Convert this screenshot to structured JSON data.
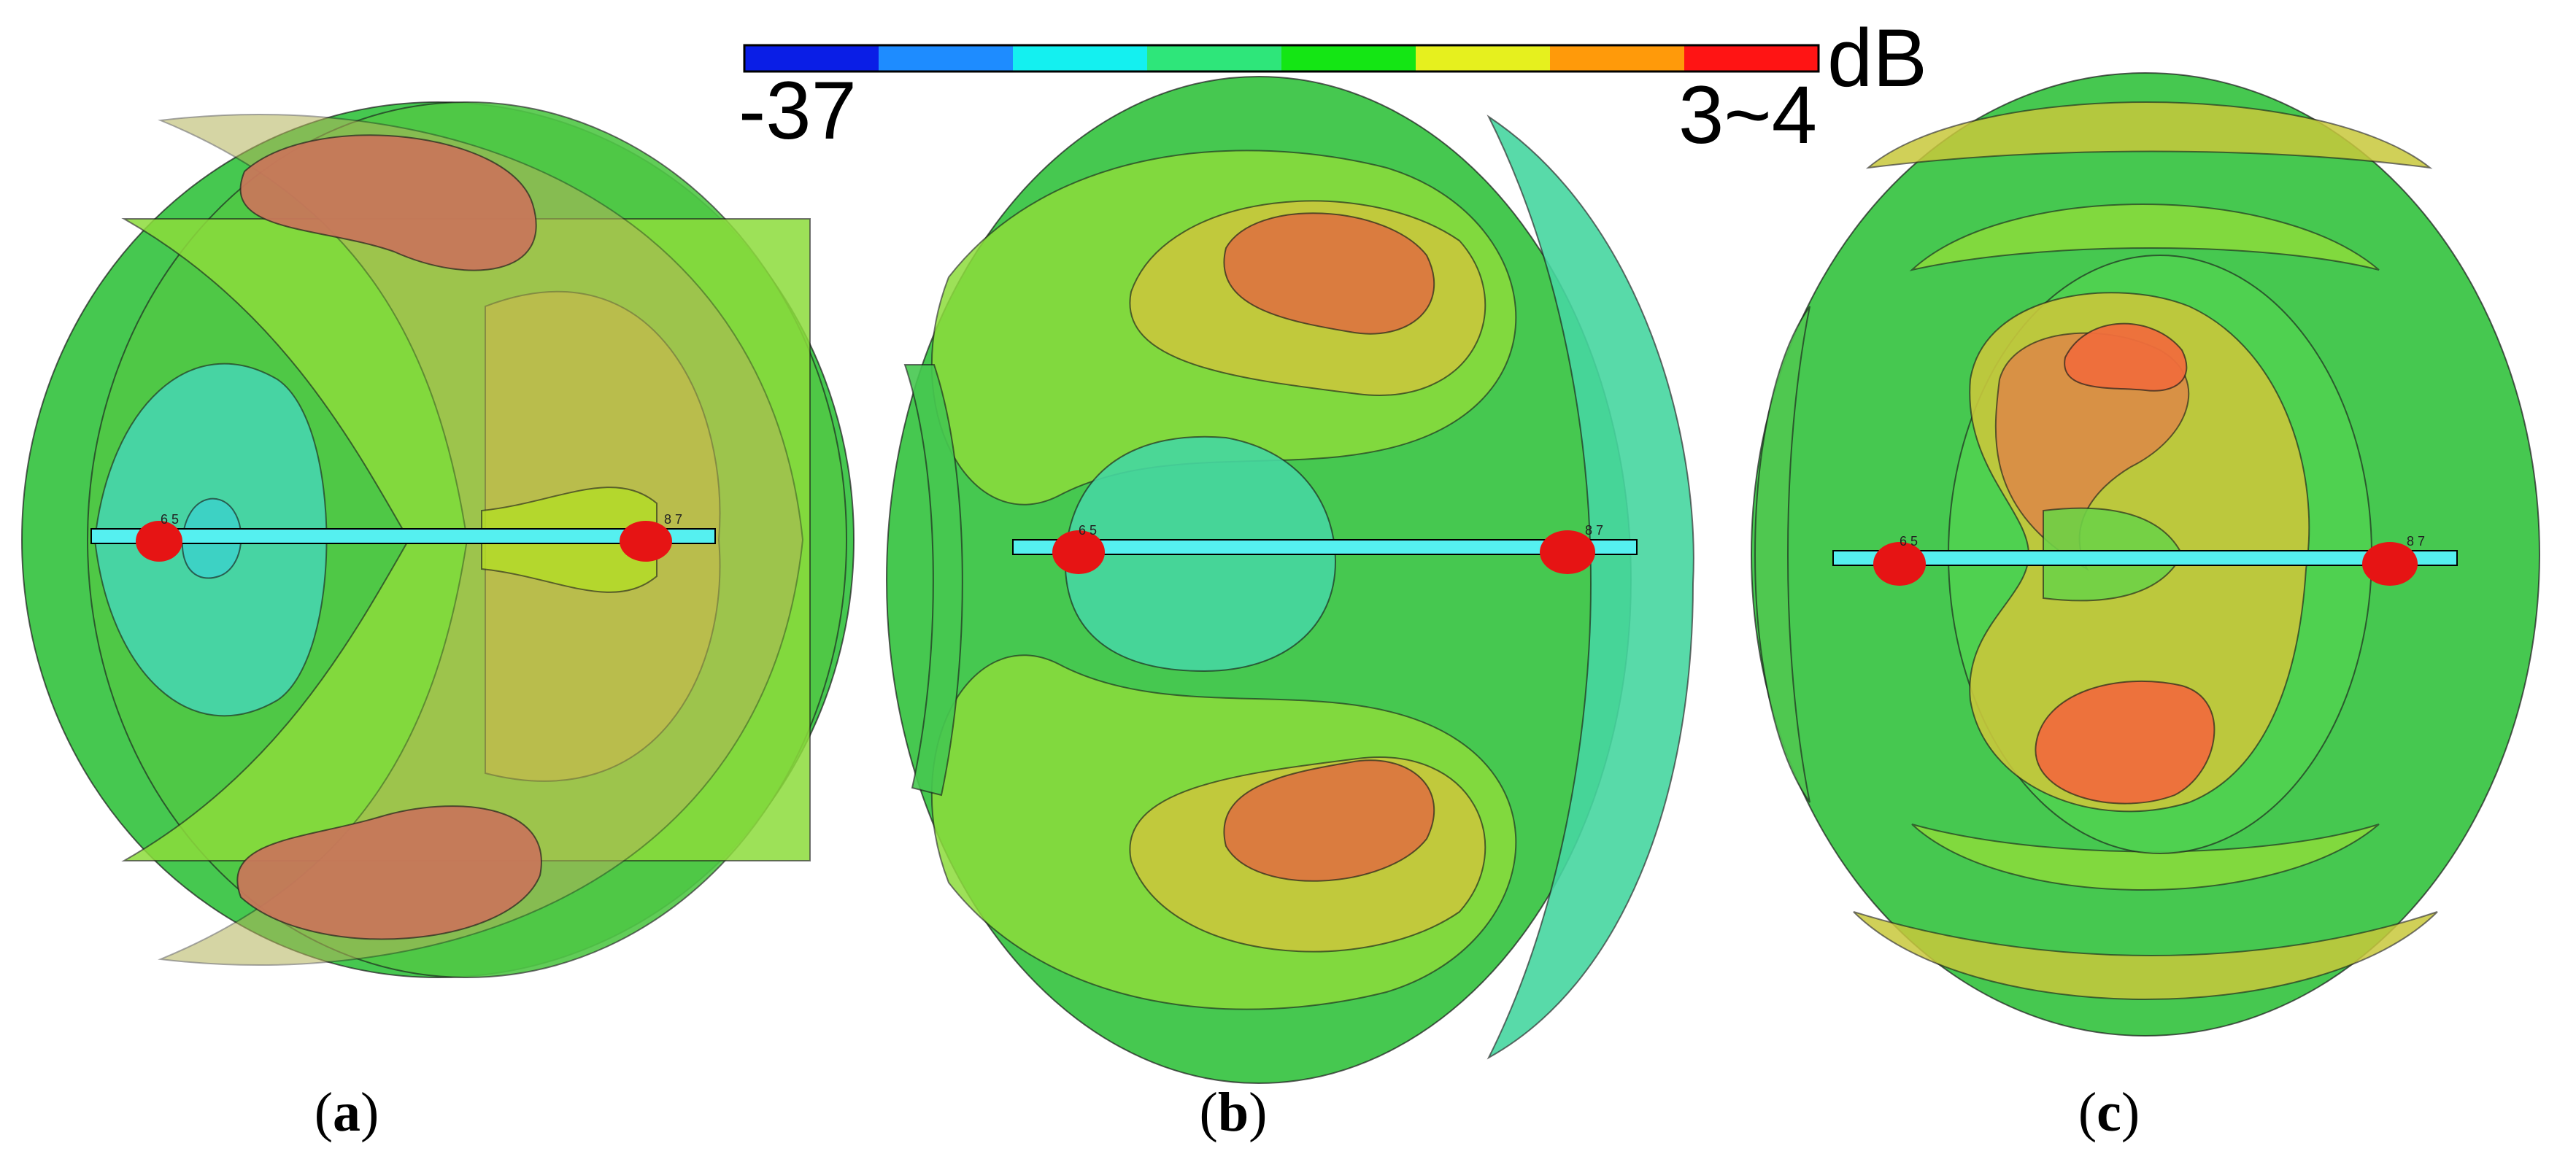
{
  "colorbar": {
    "min_label": "-37",
    "max_label": "3~4",
    "unit": "dB",
    "colors": [
      "#0a1ee6",
      "#1e8cff",
      "#14f0f0",
      "#2ee67a",
      "#14e614",
      "#e6f01e",
      "#ff9a0a",
      "#ff1414"
    ]
  },
  "surface_colors": {
    "cyan": "#46d7b4",
    "green": "#46c850",
    "lightgreen": "#8cdc3c",
    "yellow": "#c8c83c",
    "orange": "#d28c3c",
    "red": "#e65028",
    "bar": "#55f0f0",
    "node": "#e61414"
  },
  "panels": [
    {
      "id": "a",
      "label_open": "(",
      "label_letter": "a",
      "label_close": ")",
      "node_labels_left": "6 5",
      "node_labels_right": "8 7"
    },
    {
      "id": "b",
      "label_open": "(",
      "label_letter": "b",
      "label_close": ")",
      "node_labels_left": "6 5",
      "node_labels_right": "8 7"
    },
    {
      "id": "c",
      "label_open": "(",
      "label_letter": "c",
      "label_close": ")",
      "node_labels_left": "6 5",
      "node_labels_right": "8 7"
    }
  ]
}
